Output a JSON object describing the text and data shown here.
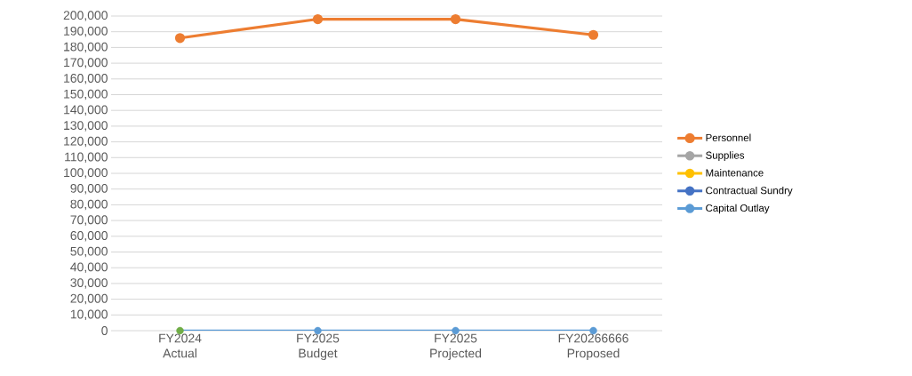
{
  "chart_data": {
    "type": "line",
    "categories": [
      "FY2024 Actual",
      "FY2025 Budget",
      "FY2025 Projected",
      "FY20266666 Proposed"
    ],
    "series": [
      {
        "name": "Personnel",
        "color": "#ed7d31",
        "values": [
          186000,
          198000,
          198000,
          188000
        ]
      },
      {
        "name": "Supplies",
        "color": "#a5a5a5",
        "values": [
          null,
          null,
          null,
          null
        ]
      },
      {
        "name": "Maintenance",
        "color": "#ffc000",
        "values": [
          null,
          null,
          null,
          null
        ]
      },
      {
        "name": "Contractual Sundry",
        "color": "#4472c4",
        "values": [
          null,
          null,
          null,
          null
        ]
      },
      {
        "name": "Capital Outlay",
        "color": "#5b9bd5",
        "colors": [
          "#70ad47",
          "#5b9bd5",
          "#5b9bd5",
          "#5b9bd5"
        ],
        "values": [
          0,
          0,
          0,
          0
        ]
      }
    ],
    "ylim": [
      0,
      200000
    ],
    "yticks": [
      {
        "value": 0,
        "label": "0"
      },
      {
        "value": 10000,
        "label": "10,000"
      },
      {
        "value": 20000,
        "label": "20,000"
      },
      {
        "value": 30000,
        "label": "30,000"
      },
      {
        "value": 40000,
        "label": "40,000"
      },
      {
        "value": 50000,
        "label": "50,000"
      },
      {
        "value": 60000,
        "label": "60,000"
      },
      {
        "value": 70000,
        "label": "70,000"
      },
      {
        "value": 80000,
        "label": "80,000"
      },
      {
        "value": 90000,
        "label": "90,000"
      },
      {
        "value": 100000,
        "label": "100,000"
      },
      {
        "value": 110000,
        "label": "110,000"
      },
      {
        "value": 120000,
        "label": "120,000"
      },
      {
        "value": 130000,
        "label": "130,000"
      },
      {
        "value": 140000,
        "label": "140,000"
      },
      {
        "value": 150000,
        "label": "150,000"
      },
      {
        "value": 160000,
        "label": "160,000"
      },
      {
        "value": 170000,
        "label": "170,000"
      },
      {
        "value": 180000,
        "label": "180,000"
      },
      {
        "value": 190000,
        "label": "190,000"
      },
      {
        "value": 200000,
        "label": "200,000"
      }
    ],
    "grid": "y",
    "legend": "right",
    "marker": "circle",
    "line_style": "solid"
  }
}
